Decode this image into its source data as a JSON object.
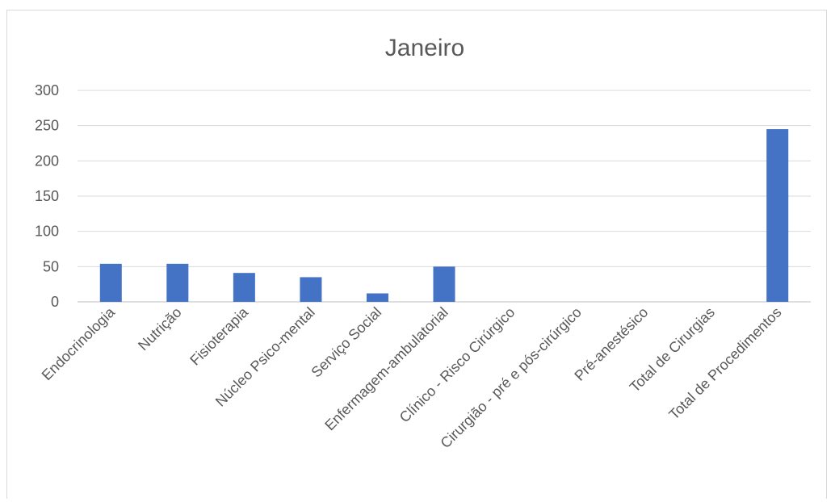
{
  "chart_data": {
    "type": "bar",
    "title": "Janeiro",
    "xlabel": "",
    "ylabel": "",
    "ylim": [
      0,
      300
    ],
    "yticks": [
      0,
      50,
      100,
      150,
      200,
      250,
      300
    ],
    "grid": true,
    "legend": "none",
    "bar_color": "#4472C4",
    "categories": [
      "Endocrinologia",
      "Nutrição",
      "Fisioterapia",
      "Núcleo Psico-mental",
      "Serviço Social",
      "Enfermagem-ambulatorial",
      "Clínico - Risco Cirúrgico",
      "Cirurgião - pré e pós-cirúrgico",
      "Pré-anestésico",
      "Total de Cirurgias",
      "Total de Procedimentos"
    ],
    "values": [
      54,
      54,
      41,
      35,
      12,
      50,
      0,
      0,
      0,
      0,
      245
    ]
  }
}
